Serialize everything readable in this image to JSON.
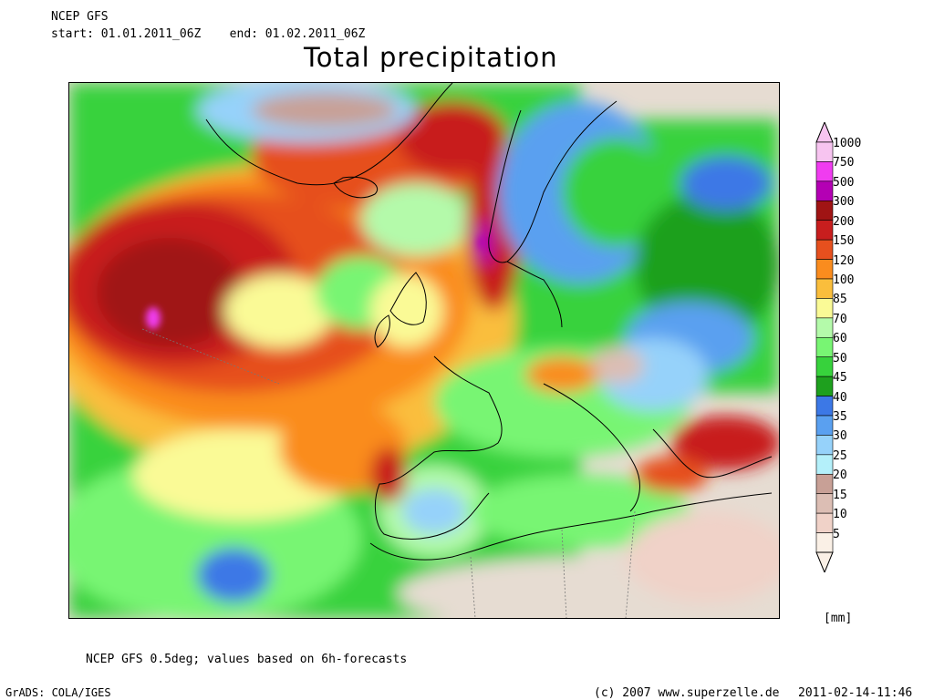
{
  "header": {
    "model": "NCEP GFS",
    "period": "start: 01.01.2011_06Z    end: 01.02.2011_06Z"
  },
  "title": "Total precipitation",
  "legend": {
    "unit": "[mm]",
    "levels": [
      {
        "label": "1000",
        "color": "#f7c4f0"
      },
      {
        "label": "750",
        "color": "#f03cf0"
      },
      {
        "label": "500",
        "color": "#b400b4"
      },
      {
        "label": "300",
        "color": "#a01414"
      },
      {
        "label": "200",
        "color": "#c81e1e"
      },
      {
        "label": "150",
        "color": "#e6501e"
      },
      {
        "label": "120",
        "color": "#fa8c1e"
      },
      {
        "label": "100",
        "color": "#fabe3c"
      },
      {
        "label": "85",
        "color": "#fafa96"
      },
      {
        "label": "70",
        "color": "#b4faaa"
      },
      {
        "label": "60",
        "color": "#78f573"
      },
      {
        "label": "50",
        "color": "#37d23c"
      },
      {
        "label": "45",
        "color": "#1ea01e"
      },
      {
        "label": "40",
        "color": "#3c78e6"
      },
      {
        "label": "35",
        "color": "#5aa0f0"
      },
      {
        "label": "30",
        "color": "#96d2fa"
      },
      {
        "label": "25",
        "color": "#b4f0fa"
      },
      {
        "label": "20",
        "color": "#c8a096"
      },
      {
        "label": "15",
        "color": "#dcbeb4"
      },
      {
        "label": "10",
        "color": "#f0d2c8"
      },
      {
        "label": "5",
        "color": "#faf0e6"
      }
    ]
  },
  "footer": {
    "note": "NCEP GFS 0.5deg; values based on 6h-forecasts",
    "grads": "GrADS: COLA/IGES",
    "copyright": "(c) 2007 www.superzelle.de",
    "timestamp": "2011-02-14-11:46"
  }
}
